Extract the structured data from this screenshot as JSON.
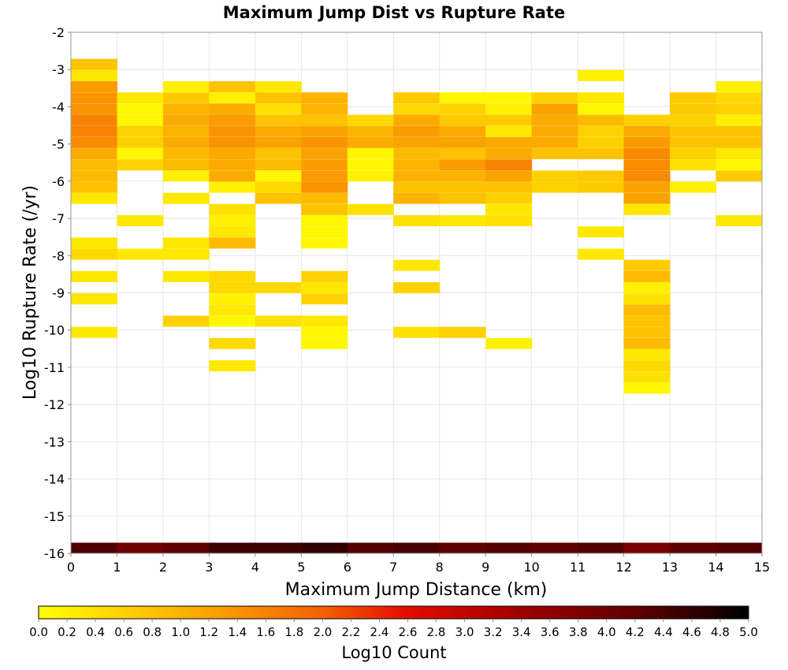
{
  "chart_data": {
    "type": "heatmap",
    "title": "Maximum Jump Dist vs Rupture Rate",
    "xlabel": "Maximum Jump Distance (km)",
    "ylabel": "Log10 Rupture Rate (/yr)",
    "xlim": [
      0,
      15
    ],
    "ylim": [
      -16,
      -2
    ],
    "x_ticks": [
      "0",
      "1",
      "2",
      "3",
      "4",
      "5",
      "6",
      "7",
      "8",
      "9",
      "10",
      "11",
      "12",
      "13",
      "14",
      "15"
    ],
    "y_ticks": [
      "-2",
      "-3",
      "-4",
      "-5",
      "-6",
      "-7",
      "-8",
      "-9",
      "-10",
      "-11",
      "-12",
      "-13",
      "-14",
      "-15",
      "-16"
    ],
    "cell_width": 1,
    "cell_height": 0.2857,
    "grid": true,
    "colorbar": {
      "label": "Log10 Count",
      "range": [
        0,
        5
      ],
      "ticks": [
        "0.0",
        "0.2",
        "0.4",
        "0.6",
        "0.8",
        "1.0",
        "1.2",
        "1.4",
        "1.6",
        "1.8",
        "2.0",
        "2.2",
        "2.4",
        "2.6",
        "2.8",
        "3.0",
        "3.2",
        "3.4",
        "3.6",
        "3.8",
        "4.0",
        "4.2",
        "4.4",
        "4.6",
        "4.8",
        "5.0"
      ],
      "stops": [
        {
          "value": 0,
          "color": "#ffff00"
        },
        {
          "value": 1,
          "color": "#fcb300"
        },
        {
          "value": 2,
          "color": "#f46200"
        },
        {
          "value": 2.6,
          "color": "#e50a00"
        },
        {
          "value": 3.4,
          "color": "#a00000"
        },
        {
          "value": 4.2,
          "color": "#600000"
        },
        {
          "value": 5,
          "color": "#000000"
        }
      ]
    },
    "columns": [
      {
        "x": 0,
        "cells": [
          [
            -3.0,
            0.8
          ],
          [
            -3.3,
            0.3
          ],
          [
            -3.6,
            1.3
          ],
          [
            -3.9,
            1.4
          ],
          [
            -4.2,
            1.4
          ],
          [
            -4.5,
            1.6
          ],
          [
            -4.8,
            1.6
          ],
          [
            -5.1,
            1.5
          ],
          [
            -5.4,
            1.1
          ],
          [
            -5.7,
            0.9
          ],
          [
            -6.0,
            0.9
          ],
          [
            -6.3,
            0.8
          ],
          [
            -6.6,
            0.3
          ],
          [
            -7.8,
            0.3
          ],
          [
            -8.1,
            0.5
          ],
          [
            -8.7,
            0.3
          ],
          [
            -9.3,
            0.3
          ],
          [
            -10.2,
            0.3
          ],
          [
            -16.0,
            4.35
          ]
        ]
      },
      {
        "x": 1,
        "cells": [
          [
            -3.9,
            0.3
          ],
          [
            -4.2,
            0.1
          ],
          [
            -4.5,
            0.1
          ],
          [
            -4.8,
            0.6
          ],
          [
            -5.1,
            0.6
          ],
          [
            -5.4,
            0.1
          ],
          [
            -5.7,
            0.6
          ],
          [
            -7.2,
            0.3
          ],
          [
            -8.1,
            0.3
          ],
          [
            -16.0,
            4.0
          ]
        ]
      },
      {
        "x": 2,
        "cells": [
          [
            -3.6,
            0.2
          ],
          [
            -3.9,
            0.7
          ],
          [
            -4.2,
            1.0
          ],
          [
            -4.5,
            1.1
          ],
          [
            -4.8,
            1.0
          ],
          [
            -5.1,
            1.1
          ],
          [
            -5.4,
            0.9
          ],
          [
            -5.7,
            0.9
          ],
          [
            -6.0,
            0.2
          ],
          [
            -6.6,
            0.3
          ],
          [
            -7.8,
            0.3
          ],
          [
            -8.1,
            0.3
          ],
          [
            -8.7,
            0.3
          ],
          [
            -9.9,
            0.6
          ],
          [
            -16.0,
            4.2
          ]
        ]
      },
      {
        "x": 3,
        "cells": [
          [
            -3.6,
            0.8
          ],
          [
            -3.9,
            0.2
          ],
          [
            -4.2,
            1.1
          ],
          [
            -4.5,
            1.3
          ],
          [
            -4.8,
            1.4
          ],
          [
            -5.1,
            1.4
          ],
          [
            -5.4,
            1.1
          ],
          [
            -5.7,
            1.1
          ],
          [
            -6.0,
            1.1
          ],
          [
            -6.3,
            0.2
          ],
          [
            -6.9,
            0.4
          ],
          [
            -7.2,
            0.2
          ],
          [
            -7.5,
            0.3
          ],
          [
            -7.8,
            0.9
          ],
          [
            -8.7,
            0.5
          ],
          [
            -9.0,
            0.5
          ],
          [
            -9.3,
            0.2
          ],
          [
            -9.6,
            0.3
          ],
          [
            -9.9,
            0.1
          ],
          [
            -10.5,
            0.5
          ],
          [
            -11.1,
            0.3
          ],
          [
            -16.0,
            4.5
          ]
        ]
      },
      {
        "x": 4,
        "cells": [
          [
            -3.6,
            0.3
          ],
          [
            -3.9,
            0.8
          ],
          [
            -4.2,
            0.4
          ],
          [
            -4.5,
            0.8
          ],
          [
            -4.8,
            1.1
          ],
          [
            -5.1,
            1.2
          ],
          [
            -5.4,
            0.8
          ],
          [
            -5.7,
            0.9
          ],
          [
            -6.0,
            0.1
          ],
          [
            -6.3,
            0.5
          ],
          [
            -6.6,
            0.8
          ],
          [
            -9.0,
            0.5
          ],
          [
            -9.9,
            0.4
          ],
          [
            -16.0,
            4.5
          ]
        ]
      },
      {
        "x": 5,
        "cells": [
          [
            -3.9,
            1.0
          ],
          [
            -4.2,
            1.0
          ],
          [
            -4.5,
            0.8
          ],
          [
            -4.8,
            1.2
          ],
          [
            -5.1,
            1.4
          ],
          [
            -5.4,
            1.2
          ],
          [
            -5.7,
            1.3
          ],
          [
            -6.0,
            1.3
          ],
          [
            -6.3,
            1.4
          ],
          [
            -6.6,
            0.9
          ],
          [
            -6.9,
            0.8
          ],
          [
            -7.2,
            0.1
          ],
          [
            -7.5,
            0.1
          ],
          [
            -7.8,
            0.1
          ],
          [
            -8.7,
            0.6
          ],
          [
            -9.0,
            0.3
          ],
          [
            -9.3,
            0.6
          ],
          [
            -9.9,
            0.3
          ],
          [
            -10.2,
            0.1
          ],
          [
            -10.5,
            0.1
          ],
          [
            -16.0,
            4.6
          ]
        ]
      },
      {
        "x": 6,
        "cells": [
          [
            -4.5,
            0.5
          ],
          [
            -4.8,
            1.0
          ],
          [
            -5.1,
            1.1
          ],
          [
            -5.4,
            0.1
          ],
          [
            -5.7,
            0.1
          ],
          [
            -6.0,
            0.2
          ],
          [
            -6.9,
            0.4
          ],
          [
            -16.0,
            4.3
          ]
        ]
      },
      {
        "x": 7,
        "cells": [
          [
            -3.9,
            0.7
          ],
          [
            -4.2,
            0.5
          ],
          [
            -4.5,
            1.1
          ],
          [
            -4.8,
            1.3
          ],
          [
            -5.1,
            1.2
          ],
          [
            -5.4,
            0.9
          ],
          [
            -5.7,
            1.0
          ],
          [
            -6.0,
            1.0
          ],
          [
            -6.3,
            0.8
          ],
          [
            -6.6,
            1.0
          ],
          [
            -7.2,
            0.4
          ],
          [
            -8.4,
            0.3
          ],
          [
            -9.0,
            0.6
          ],
          [
            -10.2,
            0.4
          ],
          [
            -16.0,
            4.4
          ]
        ]
      },
      {
        "x": 8,
        "cells": [
          [
            -3.9,
            0.1
          ],
          [
            -4.2,
            0.6
          ],
          [
            -4.5,
            0.7
          ],
          [
            -4.8,
            1.1
          ],
          [
            -5.1,
            1.2
          ],
          [
            -5.4,
            0.8
          ],
          [
            -5.7,
            1.3
          ],
          [
            -6.0,
            1.0
          ],
          [
            -6.3,
            0.8
          ],
          [
            -6.6,
            0.8
          ],
          [
            -7.2,
            0.3
          ],
          [
            -10.2,
            0.6
          ],
          [
            -16.0,
            4.2
          ]
        ]
      },
      {
        "x": 9,
        "cells": [
          [
            -3.9,
            0.1
          ],
          [
            -4.2,
            0.2
          ],
          [
            -4.5,
            0.7
          ],
          [
            -4.8,
            0.3
          ],
          [
            -5.1,
            1.1
          ],
          [
            -5.4,
            1.1
          ],
          [
            -5.7,
            1.6
          ],
          [
            -6.0,
            1.2
          ],
          [
            -6.3,
            0.8
          ],
          [
            -6.6,
            0.6
          ],
          [
            -6.9,
            0.3
          ],
          [
            -7.2,
            0.4
          ],
          [
            -10.5,
            0.2
          ],
          [
            -16.0,
            4.3
          ]
        ]
      },
      {
        "x": 10,
        "cells": [
          [
            -3.9,
            0.6
          ],
          [
            -4.2,
            1.2
          ],
          [
            -4.5,
            1.1
          ],
          [
            -4.8,
            1.1
          ],
          [
            -5.1,
            1.1
          ],
          [
            -5.4,
            0.8
          ],
          [
            -6.0,
            0.6
          ],
          [
            -6.3,
            0.6
          ],
          [
            -16.0,
            4.2
          ]
        ]
      },
      {
        "x": 11,
        "cells": [
          [
            -3.3,
            0.2
          ],
          [
            -3.9,
            0.3
          ],
          [
            -4.2,
            0.1
          ],
          [
            -4.5,
            0.9
          ],
          [
            -4.8,
            0.6
          ],
          [
            -5.1,
            0.6
          ],
          [
            -5.4,
            0.8
          ],
          [
            -6.0,
            0.7
          ],
          [
            -6.3,
            0.7
          ],
          [
            -7.5,
            0.3
          ],
          [
            -8.1,
            0.3
          ],
          [
            -16.0,
            4.3
          ]
        ]
      },
      {
        "x": 12,
        "cells": [
          [
            -4.5,
            0.6
          ],
          [
            -4.8,
            1.1
          ],
          [
            -5.1,
            1.3
          ],
          [
            -5.4,
            1.5
          ],
          [
            -5.7,
            1.5
          ],
          [
            -6.0,
            1.5
          ],
          [
            -6.3,
            1.2
          ],
          [
            -6.6,
            1.2
          ],
          [
            -6.9,
            0.3
          ],
          [
            -8.4,
            0.7
          ],
          [
            -8.7,
            0.9
          ],
          [
            -9.0,
            0.2
          ],
          [
            -9.3,
            0.4
          ],
          [
            -9.6,
            0.9
          ],
          [
            -9.9,
            0.8
          ],
          [
            -10.2,
            0.8
          ],
          [
            -10.5,
            0.9
          ],
          [
            -10.8,
            0.3
          ],
          [
            -11.1,
            0.5
          ],
          [
            -11.4,
            0.4
          ],
          [
            -11.7,
            0.1
          ],
          [
            -16.0,
            3.9
          ]
        ]
      },
      {
        "x": 13,
        "cells": [
          [
            -3.9,
            0.7
          ],
          [
            -4.2,
            0.7
          ],
          [
            -4.5,
            0.6
          ],
          [
            -4.8,
            0.8
          ],
          [
            -5.1,
            0.8
          ],
          [
            -5.4,
            0.6
          ],
          [
            -5.7,
            0.4
          ],
          [
            -6.3,
            0.2
          ],
          [
            -16.0,
            4.2
          ]
        ]
      },
      {
        "x": 14,
        "cells": [
          [
            -3.6,
            0.2
          ],
          [
            -3.9,
            0.5
          ],
          [
            -4.2,
            0.6
          ],
          [
            -4.5,
            0.2
          ],
          [
            -4.8,
            0.8
          ],
          [
            -5.1,
            0.8
          ],
          [
            -5.4,
            0.3
          ],
          [
            -5.7,
            0.1
          ],
          [
            -6.0,
            0.7
          ],
          [
            -7.2,
            0.3
          ],
          [
            -16.0,
            4.3
          ]
        ]
      }
    ]
  }
}
